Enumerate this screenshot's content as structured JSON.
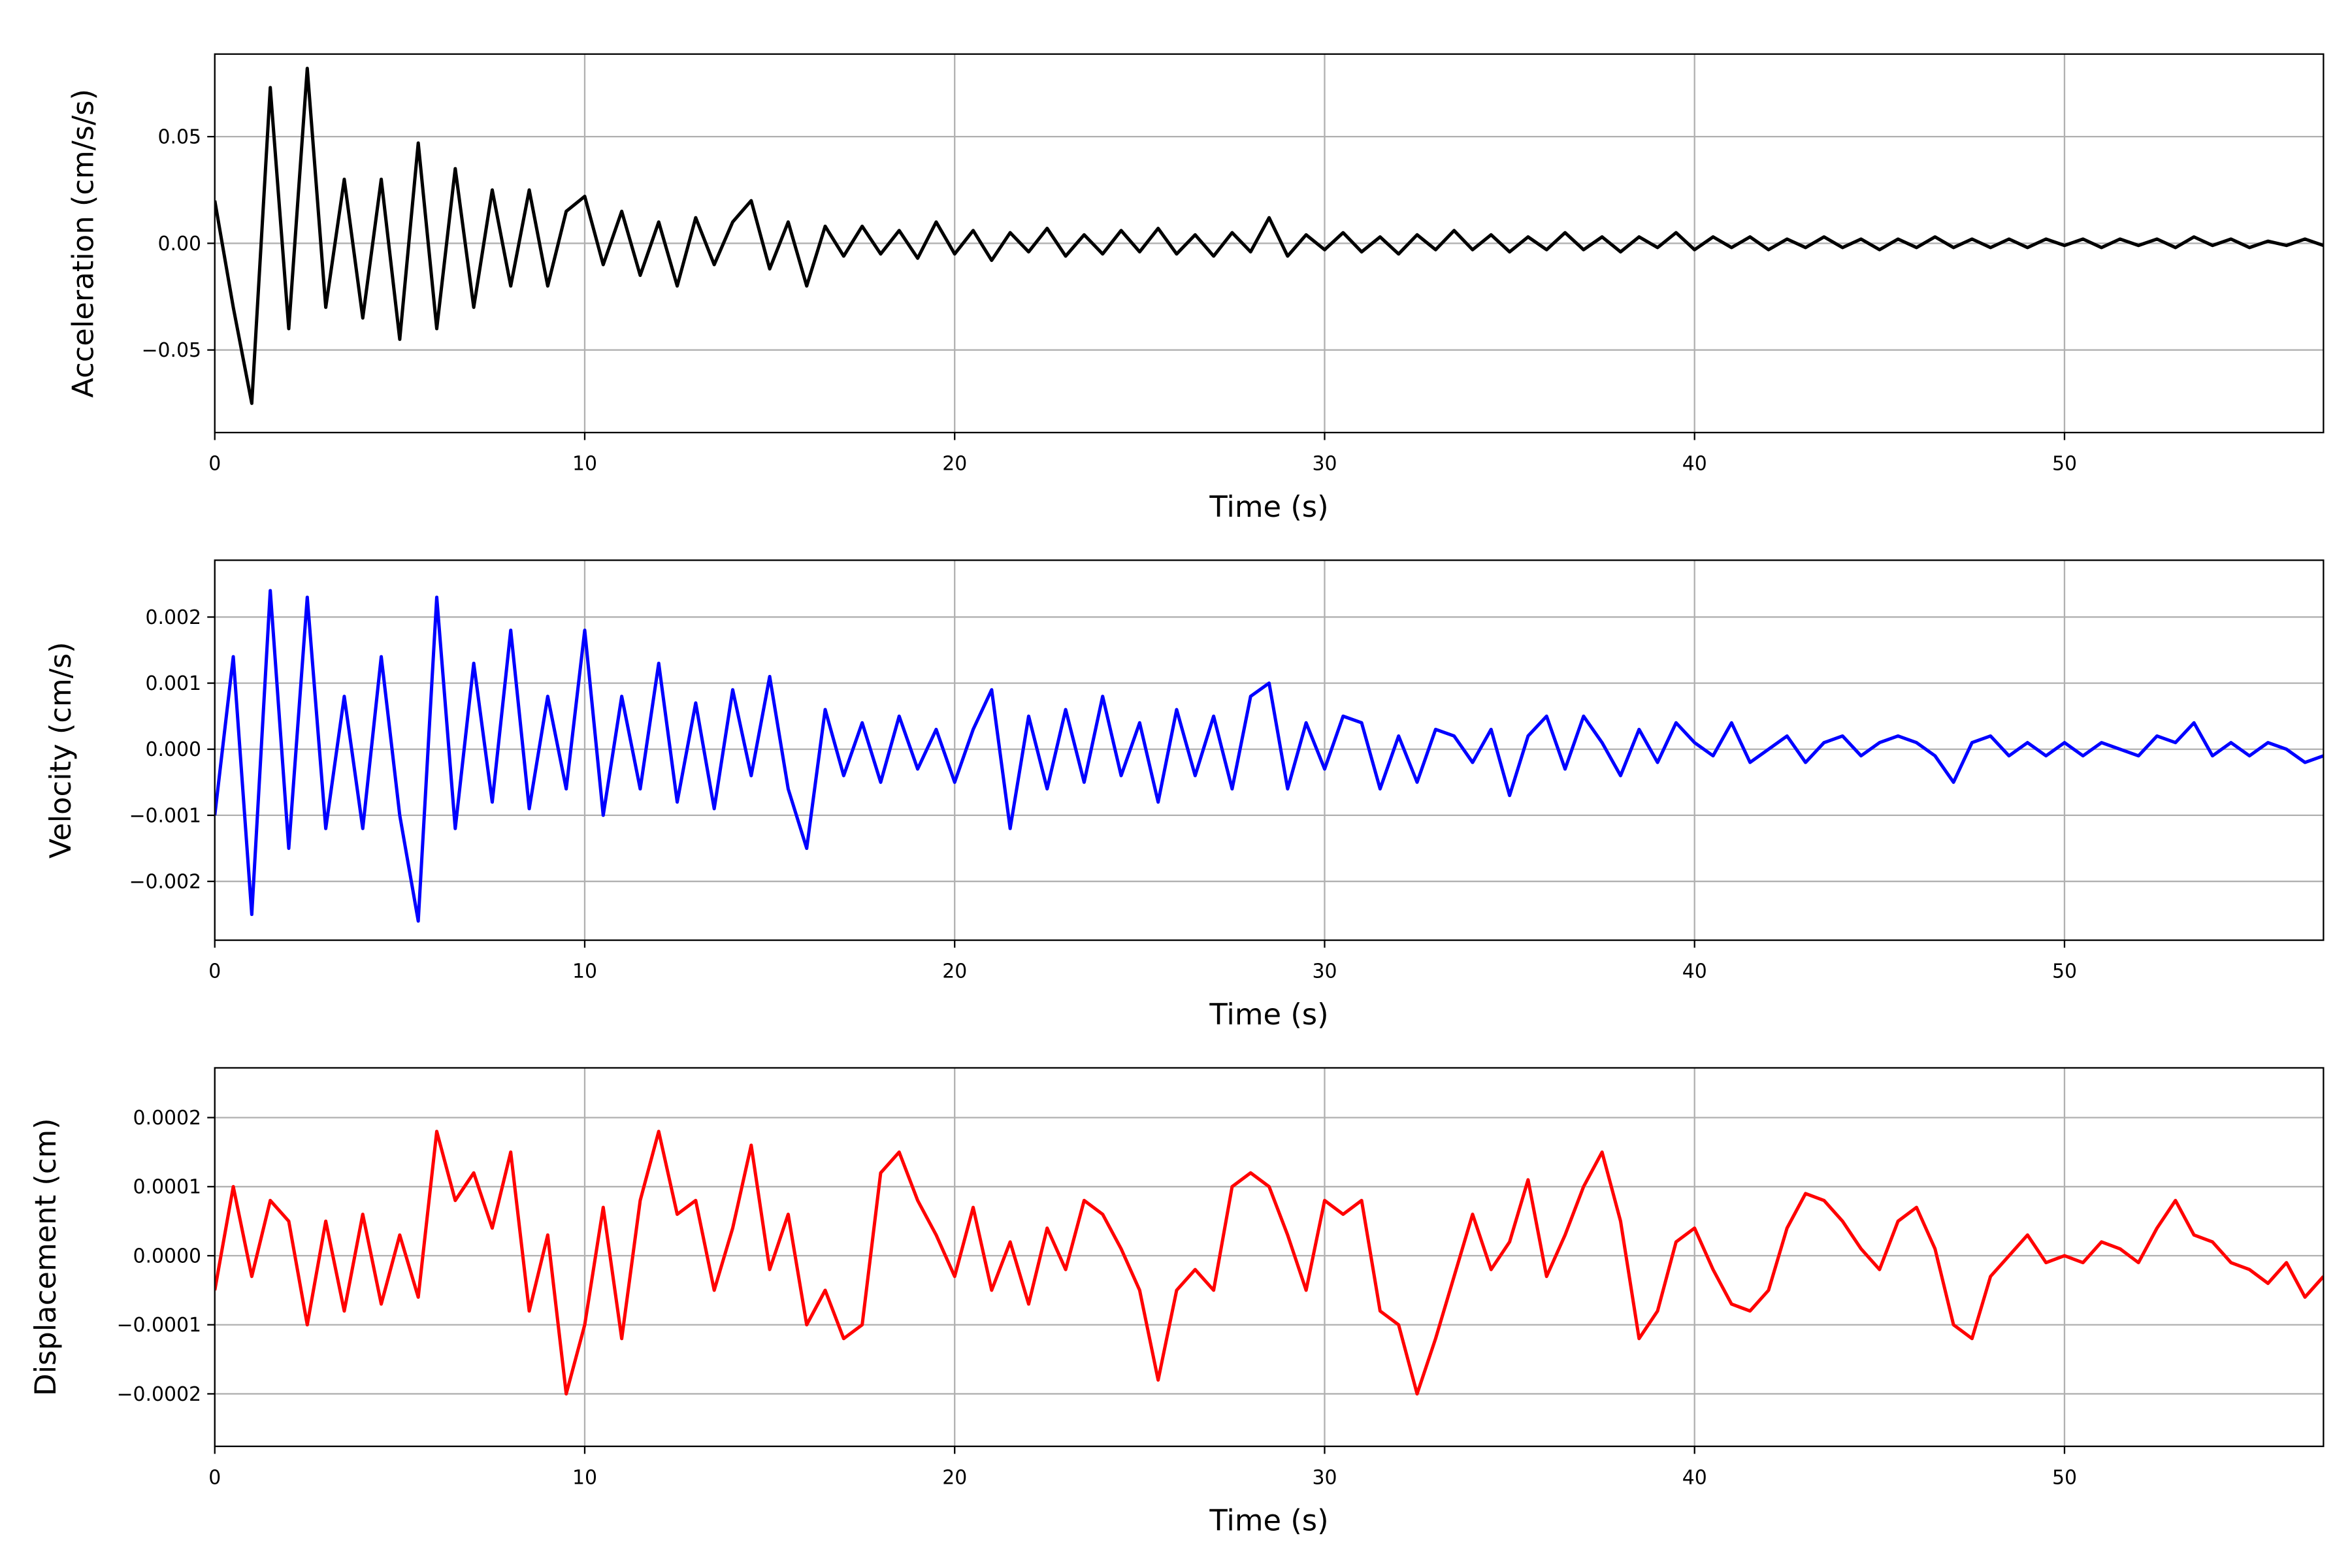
{
  "chart_data": [
    {
      "type": "line",
      "xlabel": "Time (s)",
      "ylabel": "Acceleration (cm/s/s)",
      "color": "#000000",
      "grid": true,
      "xlim": [
        0,
        57
      ],
      "xticks": [
        0,
        10,
        20,
        30,
        40,
        50
      ],
      "ylim": [
        -0.0887,
        0.0887
      ],
      "yticks": [
        {
          "value": -0.05,
          "label": "−0.05"
        },
        {
          "value": 0,
          "label": "0.00"
        },
        0.05
      ],
      "x": [
        0,
        0.5,
        1,
        1.5,
        2,
        2.5,
        3,
        3.5,
        4,
        4.5,
        5,
        5.5,
        6,
        6.5,
        7,
        7.5,
        8,
        8.5,
        9,
        9.5,
        10,
        10.5,
        11,
        11.5,
        12,
        12.5,
        13,
        13.5,
        14,
        14.5,
        15,
        15.5,
        16,
        16.5,
        17,
        17.5,
        18,
        18.5,
        19,
        19.5,
        20,
        20.5,
        21,
        21.5,
        22,
        22.5,
        23,
        23.5,
        24,
        24.5,
        25,
        25.5,
        26,
        26.5,
        27,
        27.5,
        28,
        28.5,
        29,
        29.5,
        30,
        30.5,
        31,
        31.5,
        32,
        32.5,
        33,
        33.5,
        34,
        34.5,
        35,
        35.5,
        36,
        36.5,
        37,
        37.5,
        38,
        38.5,
        39,
        39.5,
        40,
        40.5,
        41,
        41.5,
        42,
        42.5,
        43,
        43.5,
        44,
        44.5,
        45,
        45.5,
        46,
        46.5,
        47,
        47.5,
        48,
        48.5,
        49,
        49.5,
        50,
        50.5,
        51,
        51.5,
        52,
        52.5,
        53,
        53.5,
        54,
        54.5,
        55,
        55.5,
        56,
        56.5,
        57
      ],
      "values": [
        0.02,
        -0.03,
        -0.075,
        0.073,
        -0.04,
        0.082,
        -0.03,
        0.03,
        -0.035,
        0.03,
        -0.045,
        0.047,
        -0.04,
        0.035,
        -0.03,
        0.025,
        -0.02,
        0.025,
        -0.02,
        0.015,
        0.022,
        -0.01,
        0.015,
        -0.015,
        0.01,
        -0.02,
        0.012,
        -0.01,
        0.01,
        0.02,
        -0.012,
        0.01,
        -0.02,
        0.008,
        -0.006,
        0.008,
        -0.005,
        0.006,
        -0.007,
        0.01,
        -0.005,
        0.006,
        -0.008,
        0.005,
        -0.004,
        0.007,
        -0.006,
        0.004,
        -0.005,
        0.006,
        -0.004,
        0.007,
        -0.005,
        0.004,
        -0.006,
        0.005,
        -0.004,
        0.012,
        -0.006,
        0.004,
        -0.003,
        0.005,
        -0.004,
        0.003,
        -0.005,
        0.004,
        -0.003,
        0.006,
        -0.003,
        0.004,
        -0.004,
        0.003,
        -0.003,
        0.005,
        -0.003,
        0.003,
        -0.004,
        0.003,
        -0.002,
        0.005,
        -0.003,
        0.003,
        -0.002,
        0.003,
        -0.003,
        0.002,
        -0.002,
        0.003,
        -0.002,
        0.002,
        -0.003,
        0.002,
        -0.002,
        0.003,
        -0.002,
        0.002,
        -0.002,
        0.002,
        -0.002,
        0.002,
        -0.001,
        0.002,
        -0.002,
        0.002,
        -0.001,
        0.002,
        -0.002,
        0.003,
        -0.001,
        0.002,
        -0.002,
        0.001,
        -0.001,
        0.002,
        -0.001
      ]
    },
    {
      "type": "line",
      "xlabel": "Time (s)",
      "ylabel": "Velocity (cm/s)",
      "color": "#0000ff",
      "grid": true,
      "xlim": [
        0,
        57
      ],
      "xticks": [
        0,
        10,
        20,
        30,
        40,
        50
      ],
      "ylim": [
        -0.00289,
        0.00286
      ],
      "yticks": [
        {
          "value": -0.002,
          "label": "−0.002"
        },
        {
          "value": -0.001,
          "label": "−0.001"
        },
        {
          "value": 0,
          "label": "0.000"
        },
        0.001,
        0.002
      ],
      "x": [
        0,
        0.5,
        1,
        1.5,
        2,
        2.5,
        3,
        3.5,
        4,
        4.5,
        5,
        5.5,
        6,
        6.5,
        7,
        7.5,
        8,
        8.5,
        9,
        9.5,
        10,
        10.5,
        11,
        11.5,
        12,
        12.5,
        13,
        13.5,
        14,
        14.5,
        15,
        15.5,
        16,
        16.5,
        17,
        17.5,
        18,
        18.5,
        19,
        19.5,
        20,
        20.5,
        21,
        21.5,
        22,
        22.5,
        23,
        23.5,
        24,
        24.5,
        25,
        25.5,
        26,
        26.5,
        27,
        27.5,
        28,
        28.5,
        29,
        29.5,
        30,
        30.5,
        31,
        31.5,
        32,
        32.5,
        33,
        33.5,
        34,
        34.5,
        35,
        35.5,
        36,
        36.5,
        37,
        37.5,
        38,
        38.5,
        39,
        39.5,
        40,
        40.5,
        41,
        41.5,
        42,
        42.5,
        43,
        43.5,
        44,
        44.5,
        45,
        45.5,
        46,
        46.5,
        47,
        47.5,
        48,
        48.5,
        49,
        49.5,
        50,
        50.5,
        51,
        51.5,
        52,
        52.5,
        53,
        53.5,
        54,
        54.5,
        55,
        55.5,
        56,
        56.5,
        57
      ],
      "values": [
        -0.001,
        0.0014,
        -0.0025,
        0.0024,
        -0.0015,
        0.0023,
        -0.0012,
        0.0008,
        -0.0012,
        0.0014,
        -0.001,
        -0.0026,
        0.0023,
        -0.0012,
        0.0013,
        -0.0008,
        0.0018,
        -0.0009,
        0.0008,
        -0.0006,
        0.0018,
        -0.001,
        0.0008,
        -0.0006,
        0.0013,
        -0.0008,
        0.0007,
        -0.0009,
        0.0009,
        -0.0004,
        0.0011,
        -0.0006,
        -0.0015,
        0.0006,
        -0.0004,
        0.0004,
        -0.0005,
        0.0005,
        -0.0003,
        0.0003,
        -0.0005,
        0.0003,
        0.0009,
        -0.0012,
        0.0005,
        -0.0006,
        0.0006,
        -0.0005,
        0.0008,
        -0.0004,
        0.0004,
        -0.0008,
        0.0006,
        -0.0004,
        0.0005,
        -0.0006,
        0.0008,
        0.001,
        -0.0006,
        0.0004,
        -0.0003,
        0.0005,
        0.0004,
        -0.0006,
        0.0002,
        -0.0005,
        0.0003,
        0.0002,
        -0.0002,
        0.0003,
        -0.0007,
        0.0002,
        0.0005,
        -0.0003,
        0.0005,
        0.0001,
        -0.0004,
        0.0003,
        -0.0002,
        0.0004,
        0.0001,
        -0.0001,
        0.0004,
        -0.0002,
        0,
        0.0002,
        -0.0002,
        0.0001,
        0.0002,
        -0.0001,
        0.0001,
        0.0002,
        0.0001,
        -0.0001,
        -0.0005,
        0.0001,
        0.0002,
        -0.0001,
        0.0001,
        -0.0001,
        0.0001,
        -0.0001,
        0.0001,
        0,
        -0.0001,
        0.0002,
        0.0001,
        0.0004,
        -0.0001,
        0.0001,
        -0.0001,
        0.0001,
        0,
        -0.0002,
        -0.0001
      ]
    },
    {
      "type": "line",
      "xlabel": "Time (s)",
      "ylabel": "Displacement (cm)",
      "color": "#ff0000",
      "grid": true,
      "xlim": [
        0,
        57
      ],
      "xticks": [
        0,
        10,
        20,
        30,
        40,
        50
      ],
      "ylim": [
        -0.000276,
        0.000272
      ],
      "yticks": [
        {
          "value": -0.0002,
          "label": "−0.0002"
        },
        {
          "value": -0.0001,
          "label": "−0.0001"
        },
        {
          "value": 0,
          "label": "0.0000"
        },
        0.0001,
        0.0002
      ],
      "x": [
        0,
        0.5,
        1,
        1.5,
        2,
        2.5,
        3,
        3.5,
        4,
        4.5,
        5,
        5.5,
        6,
        6.5,
        7,
        7.5,
        8,
        8.5,
        9,
        9.5,
        10,
        10.5,
        11,
        11.5,
        12,
        12.5,
        13,
        13.5,
        14,
        14.5,
        15,
        15.5,
        16,
        16.5,
        17,
        17.5,
        18,
        18.5,
        19,
        19.5,
        20,
        20.5,
        21,
        21.5,
        22,
        22.5,
        23,
        23.5,
        24,
        24.5,
        25,
        25.5,
        26,
        26.5,
        27,
        27.5,
        28,
        28.5,
        29,
        29.5,
        30,
        30.5,
        31,
        31.5,
        32,
        32.5,
        33,
        33.5,
        34,
        34.5,
        35,
        35.5,
        36,
        36.5,
        37,
        37.5,
        38,
        38.5,
        39,
        39.5,
        40,
        40.5,
        41,
        41.5,
        42,
        42.5,
        43,
        43.5,
        44,
        44.5,
        45,
        45.5,
        46,
        46.5,
        47,
        47.5,
        48,
        48.5,
        49,
        49.5,
        50,
        50.5,
        51,
        51.5,
        52,
        52.5,
        53,
        53.5,
        54,
        54.5,
        55,
        55.5,
        56,
        56.5,
        57
      ],
      "values": [
        -5e-05,
        0.0001,
        -3e-05,
        8e-05,
        5e-05,
        -0.0001,
        5e-05,
        -8e-05,
        6e-05,
        -7e-05,
        3e-05,
        -6e-05,
        0.00018,
        8e-05,
        0.00012,
        4e-05,
        0.00015,
        -8e-05,
        3e-05,
        -0.0002,
        -0.0001,
        7e-05,
        -0.00012,
        8e-05,
        0.00018,
        6e-05,
        8e-05,
        -5e-05,
        4e-05,
        0.00016,
        -2e-05,
        6e-05,
        -0.0001,
        -5e-05,
        -0.00012,
        -0.0001,
        0.00012,
        0.00015,
        8e-05,
        3e-05,
        -3e-05,
        7e-05,
        -5e-05,
        2e-05,
        -7e-05,
        4e-05,
        -2e-05,
        8e-05,
        6e-05,
        1e-05,
        -5e-05,
        -0.00018,
        -5e-05,
        -2e-05,
        -5e-05,
        0.0001,
        0.00012,
        0.0001,
        3e-05,
        -5e-05,
        8e-05,
        6e-05,
        8e-05,
        -8e-05,
        -0.0001,
        -0.0002,
        -0.00012,
        -3e-05,
        6e-05,
        -2e-05,
        2e-05,
        0.00011,
        -3e-05,
        3e-05,
        0.0001,
        0.00015,
        5e-05,
        -0.00012,
        -8e-05,
        2e-05,
        4e-05,
        -2e-05,
        -7e-05,
        -8e-05,
        -5e-05,
        4e-05,
        9e-05,
        8e-05,
        5e-05,
        1e-05,
        -2e-05,
        5e-05,
        7e-05,
        1e-05,
        -0.0001,
        -0.00012,
        -3e-05,
        0,
        3e-05,
        -1e-05,
        0,
        -1e-05,
        2e-05,
        1e-05,
        -1e-05,
        4e-05,
        8e-05,
        3e-05,
        2e-05,
        -1e-05,
        -2e-05,
        -4e-05,
        -1e-05,
        -6e-05,
        -3e-05
      ]
    }
  ]
}
